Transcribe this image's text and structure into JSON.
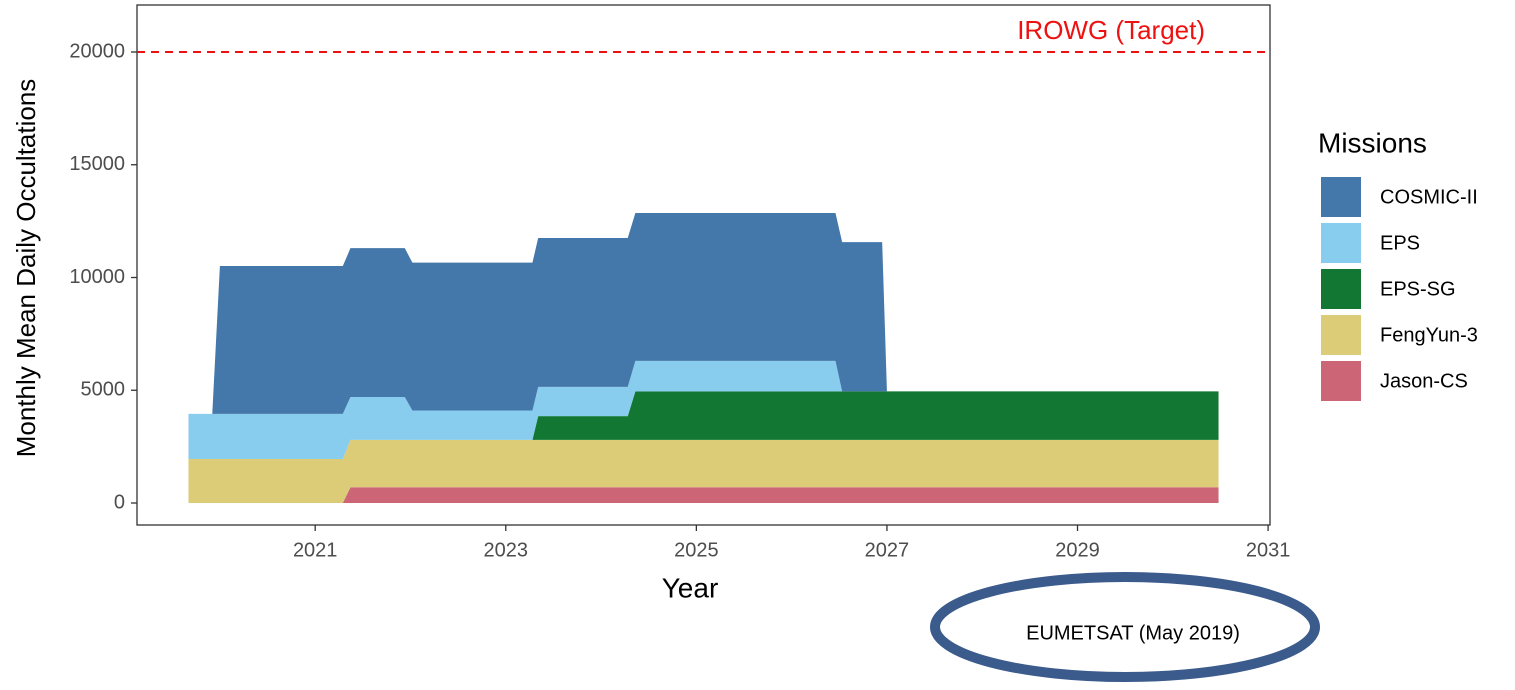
{
  "chart_data": {
    "type": "stacked_area",
    "x_label": "Year",
    "y_label": "Monthly Mean Daily Occultations",
    "legend_title": "Missions",
    "legend_position": "right",
    "x": [
      2019.67,
      2019.92,
      2020.0,
      2021.29,
      2021.37,
      2021.94,
      2022.02,
      2023.28,
      2023.34,
      2024.28,
      2024.36,
      2026.46,
      2026.53,
      2026.95,
      2027.0,
      2030.48
    ],
    "series": [
      {
        "name": "COSMIC-II",
        "color": "#4477AA",
        "values": [
          0,
          0,
          6560,
          6560,
          6600,
          6600,
          6560,
          6560,
          6600,
          6600,
          6560,
          6560,
          6620,
          6620,
          0,
          0
        ]
      },
      {
        "name": "EPS",
        "color": "#88CCEE",
        "values": [
          2000,
          2000,
          2000,
          2000,
          1900,
          1900,
          1300,
          1300,
          1300,
          1300,
          1350,
          1350,
          0,
          0,
          0,
          0
        ]
      },
      {
        "name": "EPS-SG",
        "color": "#117733",
        "values": [
          0,
          0,
          0,
          0,
          0,
          0,
          0,
          0,
          1050,
          1050,
          2150,
          2150,
          2150,
          2150,
          2150,
          2150
        ]
      },
      {
        "name": "FengYun-3",
        "color": "#DDCC77",
        "values": [
          1950,
          1950,
          1950,
          1950,
          2100,
          2100,
          2100,
          2100,
          2100,
          2100,
          2100,
          2100,
          2100,
          2100,
          2100,
          2100
        ]
      },
      {
        "name": "Jason-CS",
        "color": "#CC6677",
        "values": [
          0,
          0,
          0,
          0,
          700,
          700,
          700,
          700,
          700,
          700,
          700,
          700,
          700,
          700,
          700,
          700
        ]
      }
    ],
    "xlim": [
      2019.13,
      2031.02
    ],
    "ylim": [
      -976,
      22084
    ],
    "xticks": [
      2021,
      2023,
      2025,
      2027,
      2029,
      2031
    ],
    "yticks": [
      0,
      5000,
      10000,
      15000,
      20000
    ],
    "reference_line": {
      "value": 20000,
      "label": "IROWG (Target)",
      "color": "#ee1111"
    },
    "annotation": "EUMETSAT (May 2019)"
  }
}
